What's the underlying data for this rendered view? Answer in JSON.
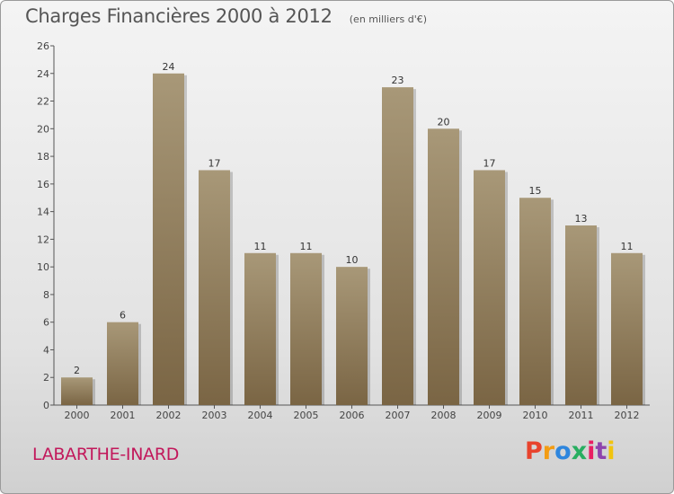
{
  "header": {
    "title": "Charges Financières 2000 à 2012",
    "subtitle": "(en milliers d'€)"
  },
  "footer": {
    "commune": "LABARTHE-INARD",
    "logo_text": "Proxiti",
    "logo_colors": [
      "#e8432d",
      "#f39c12",
      "#2e86de",
      "#27ae60",
      "#e91e63",
      "#8e44ad",
      "#f1c40f"
    ]
  },
  "chart_data": {
    "type": "bar",
    "categories": [
      "2000",
      "2001",
      "2002",
      "2003",
      "2004",
      "2005",
      "2006",
      "2007",
      "2008",
      "2009",
      "2010",
      "2011",
      "2012"
    ],
    "values": [
      2,
      6,
      24,
      17,
      11,
      11,
      10,
      23,
      20,
      17,
      15,
      13,
      11
    ],
    "value_labels": [
      "2",
      "6",
      "24",
      "17",
      "11",
      "11",
      "10",
      "23",
      "20",
      "17",
      "15",
      "13",
      "11"
    ],
    "ylim": [
      0,
      26
    ],
    "yticks": [
      0,
      2,
      4,
      6,
      8,
      10,
      12,
      14,
      16,
      18,
      20,
      22,
      24,
      26
    ],
    "grid": false,
    "bar_color_top": "#a89878",
    "bar_color_bottom": "#7a6544"
  }
}
